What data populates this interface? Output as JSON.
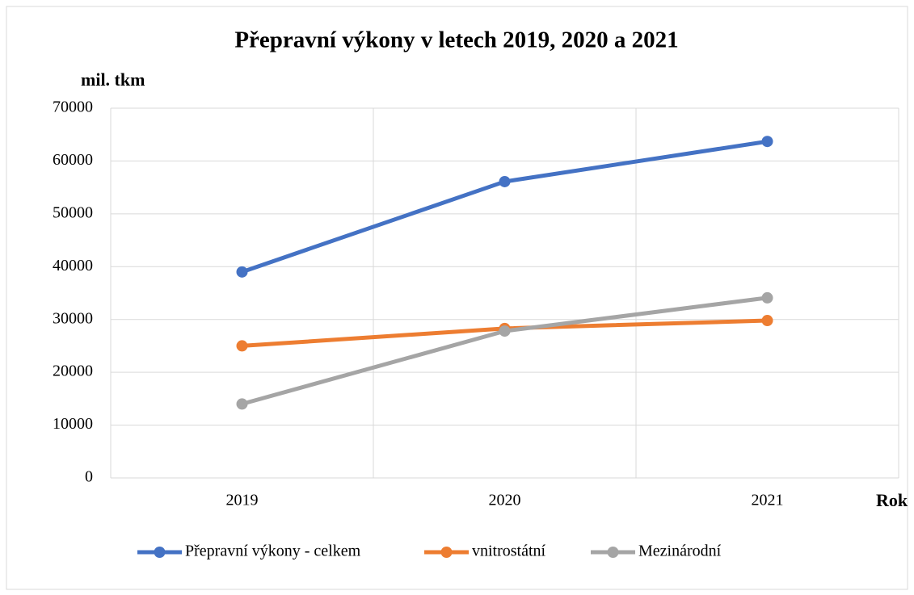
{
  "chart_data": {
    "type": "line",
    "title": "Přepravní výkony v letech 2019, 2020 a 2021",
    "y_label": "mil. tkm",
    "x_label": "Rok",
    "categories": [
      "2019",
      "2020",
      "2021"
    ],
    "series": [
      {
        "name": "Přepravní výkony - celkem",
        "color": "#4472c4",
        "values": [
          39000,
          56100,
          63700
        ]
      },
      {
        "name": "vnitrostátní",
        "color": "#ed7d31",
        "values": [
          25000,
          28300,
          29800
        ]
      },
      {
        "name": "Mezinárodní",
        "color": "#a5a5a5",
        "values": [
          14000,
          27800,
          34100
        ]
      }
    ],
    "ylim": [
      0,
      70000
    ],
    "yticks": [
      0,
      10000,
      20000,
      30000,
      40000,
      50000,
      60000,
      70000
    ],
    "grid": true,
    "legend": "bottom"
  }
}
